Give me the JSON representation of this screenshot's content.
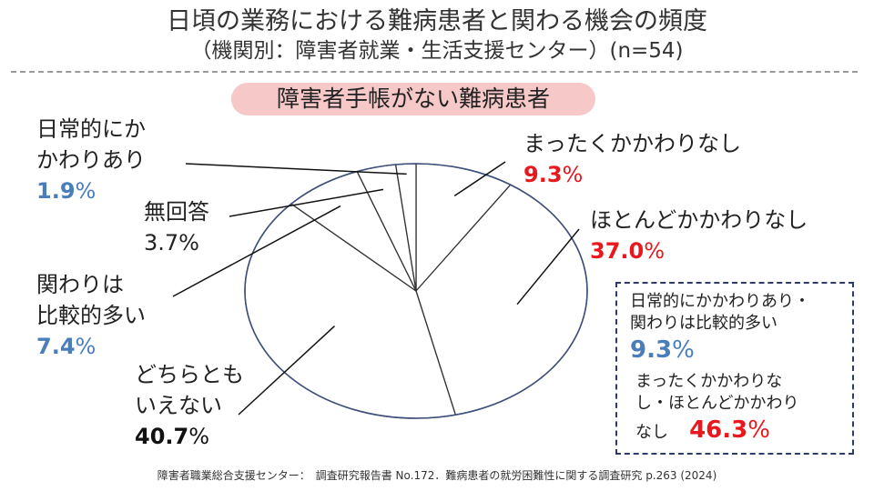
{
  "title": "日頃の業務における難病患者と関わる機会の頻度",
  "subtitle": "（機関別：障害者就業・生活支援センター）(n=54)",
  "highlight_label": "障害者手帳がない難病患者",
  "chart_data": {
    "type": "pie",
    "title": "日頃の業務における難病患者と関わる機会の頻度",
    "subtitle": "（機関別：障害者就業・生活支援センター）(n=54)",
    "slices": [
      {
        "label_lines": [
          "まったくかかわりなし"
        ],
        "value": 9.3,
        "display": "9.3",
        "color": "#e8181e"
      },
      {
        "label_lines": [
          "ほとんどかかわりなし"
        ],
        "value": 37.0,
        "display": "37.0",
        "color": "#e8181e"
      },
      {
        "label_lines": [
          "どちらとも",
          "いえない"
        ],
        "value": 40.7,
        "display": "40.7",
        "color": "#111111"
      },
      {
        "label_lines": [
          "関わりは",
          "比較的多い"
        ],
        "value": 7.4,
        "display": "7.4",
        "color": "#4a7ebb"
      },
      {
        "label_lines": [
          "無回答"
        ],
        "value": 3.7,
        "display": "3.7",
        "color": "#222222"
      },
      {
        "label_lines": [
          "日常的にか",
          "かわりあり"
        ],
        "value": 1.9,
        "display": "1.9",
        "color": "#4a7ebb"
      }
    ],
    "unit": "%",
    "direction": "clockwise from top"
  },
  "summary": {
    "group1_lines": [
      "日常的にかかわりあり・",
      "関わりは比較的多い"
    ],
    "group1_value": "9.3",
    "group2_lines": [
      "まったくかかわりな",
      "し・ほとんどかかわり",
      "なし"
    ],
    "group2_value": "46.3",
    "unit": "%"
  },
  "source": "障害者職業総合支援センター：　調査研究報告書 No.172．難病患者の就労困難性に関する調査研究 p.263 (2024)",
  "colors": {
    "pill": "#f7c8c8",
    "blue": "#4a7ebb",
    "red": "#e8181e",
    "pie_outline": "#3d4f7c",
    "box_border": "#2d3a6b"
  }
}
